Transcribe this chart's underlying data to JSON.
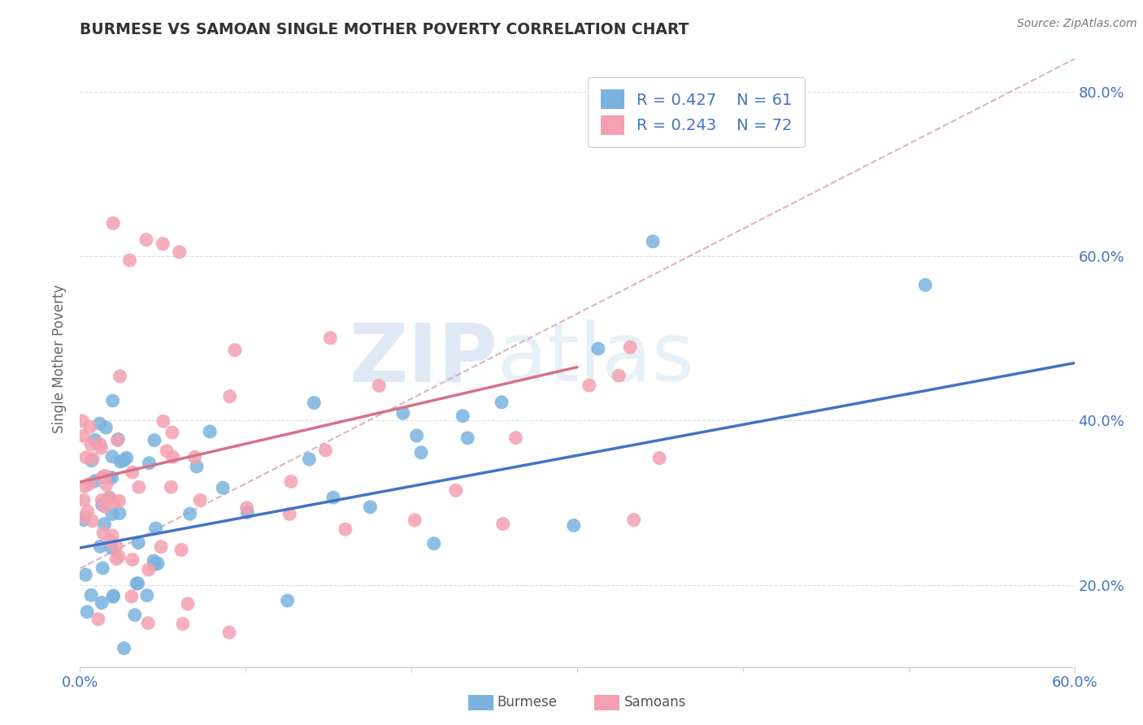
{
  "title": "BURMESE VS SAMOAN SINGLE MOTHER POVERTY CORRELATION CHART",
  "source": "Source: ZipAtlas.com",
  "ylabel": "Single Mother Poverty",
  "xlim": [
    0.0,
    0.6
  ],
  "ylim": [
    0.1,
    0.85
  ],
  "xtick_positions": [
    0.0,
    0.1,
    0.2,
    0.3,
    0.4,
    0.5,
    0.6
  ],
  "xticklabels": [
    "0.0%",
    "",
    "",
    "",
    "",
    "",
    "60.0%"
  ],
  "ytick_positions": [
    0.2,
    0.4,
    0.6,
    0.8
  ],
  "yticklabels_right": [
    "20.0%",
    "40.0%",
    "60.0%",
    "80.0%"
  ],
  "burmese_color": "#7ab3e0",
  "samoan_color": "#f4a0b0",
  "burmese_line_color": "#4472c4",
  "samoan_line_color": "#d4728a",
  "ref_line_color": "#d4a0b0",
  "legend_R1": "R = 0.427",
  "legend_N1": "N = 61",
  "legend_R2": "R = 0.243",
  "legend_N2": "N = 72",
  "legend_label1": "Burmese",
  "legend_label2": "Samoans",
  "watermark": "ZIPatlas",
  "title_color": "#333333",
  "axis_label_color": "#666666",
  "tick_label_color": "#4472c4",
  "grid_color": "#dddddd",
  "background_color": "#ffffff",
  "blue_line_x0": 0.0,
  "blue_line_y0": 0.245,
  "blue_line_x1": 0.6,
  "blue_line_y1": 0.47,
  "pink_line_x0": 0.0,
  "pink_line_y0": 0.325,
  "pink_line_x1": 0.3,
  "pink_line_y1": 0.465,
  "ref_line_x0": 0.0,
  "ref_line_y0": 0.22,
  "ref_line_x1": 0.6,
  "ref_line_y1": 0.84
}
